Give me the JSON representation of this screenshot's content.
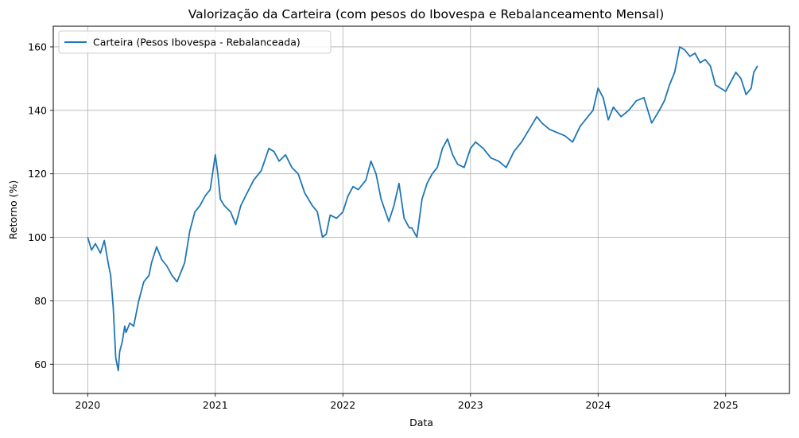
{
  "chart_data": {
    "type": "line",
    "title": "Valorização da Carteira (com pesos do Ibovespa e Rebalanceamento Mensal)",
    "xlabel": "Data",
    "ylabel": "Retorno (%)",
    "x_tick_labels": [
      "2020",
      "2021",
      "2022",
      "2023",
      "2024",
      "2025"
    ],
    "x_tick_values": [
      2020,
      2021,
      2022,
      2023,
      2024,
      2025
    ],
    "y_tick_values": [
      60,
      80,
      100,
      120,
      140,
      160
    ],
    "xlim": [
      2019.73,
      2025.5
    ],
    "ylim": [
      50.8,
      166.5
    ],
    "grid": true,
    "legend_position": "upper-left",
    "line_color": "#1f77b4",
    "series": [
      {
        "name": "Carteira (Pesos Ibovespa - Rebalanceada)",
        "x": [
          2020.0,
          2020.03,
          2020.06,
          2020.1,
          2020.13,
          2020.16,
          2020.18,
          2020.2,
          2020.22,
          2020.24,
          2020.25,
          2020.27,
          2020.29,
          2020.3,
          2020.33,
          2020.36,
          2020.4,
          2020.44,
          2020.48,
          2020.5,
          2020.54,
          2020.58,
          2020.62,
          2020.66,
          2020.7,
          2020.74,
          2020.76,
          2020.8,
          2020.84,
          2020.88,
          2020.92,
          2020.96,
          2021.0,
          2021.02,
          2021.04,
          2021.07,
          2021.12,
          2021.16,
          2021.2,
          2021.25,
          2021.3,
          2021.36,
          2021.42,
          2021.46,
          2021.5,
          2021.55,
          2021.6,
          2021.65,
          2021.7,
          2021.76,
          2021.8,
          2021.84,
          2021.87,
          2021.9,
          2021.95,
          2022.0,
          2022.04,
          2022.08,
          2022.12,
          2022.18,
          2022.22,
          2022.26,
          2022.3,
          2022.36,
          2022.4,
          2022.44,
          2022.48,
          2022.52,
          2022.54,
          2022.58,
          2022.62,
          2022.66,
          2022.7,
          2022.74,
          2022.78,
          2022.82,
          2022.86,
          2022.9,
          2022.95,
          2023.0,
          2023.04,
          2023.1,
          2023.16,
          2023.22,
          2023.28,
          2023.34,
          2023.4,
          2023.46,
          2023.52,
          2023.56,
          2023.62,
          2023.68,
          2023.74,
          2023.8,
          2023.86,
          2023.92,
          2023.96,
          2024.0,
          2024.04,
          2024.08,
          2024.12,
          2024.18,
          2024.24,
          2024.3,
          2024.36,
          2024.42,
          2024.48,
          2024.52,
          2024.56,
          2024.6,
          2024.64,
          2024.68,
          2024.72,
          2024.76,
          2024.8,
          2024.84,
          2024.88,
          2024.92,
          2024.96,
          2025.0,
          2025.04,
          2025.08,
          2025.12,
          2025.16,
          2025.2,
          2025.22,
          2025.25
        ],
        "values": [
          100,
          96,
          98,
          95,
          99,
          92,
          88,
          78,
          62,
          58,
          64,
          67,
          72,
          70,
          73,
          72,
          80,
          86,
          88,
          92,
          97,
          93,
          91,
          88,
          86,
          90,
          92,
          102,
          108,
          110,
          113,
          115,
          126,
          120,
          112,
          110,
          108,
          104,
          110,
          114,
          118,
          121,
          128,
          127,
          124,
          126,
          122,
          120,
          114,
          110,
          108,
          100,
          101,
          107,
          106,
          108,
          113,
          116,
          115,
          118,
          124,
          120,
          112,
          105,
          110,
          117,
          106,
          103,
          103,
          100,
          112,
          117,
          120,
          122,
          128,
          131,
          126,
          123,
          122,
          128,
          130,
          128,
          125,
          124,
          122,
          127,
          130,
          134,
          138,
          136,
          134,
          133,
          132,
          130,
          135,
          138,
          140,
          147,
          144,
          137,
          141,
          138,
          140,
          143,
          144,
          136,
          140,
          143,
          148,
          152,
          160,
          159,
          157,
          158,
          155,
          156,
          154,
          148,
          147,
          146,
          149,
          152,
          150,
          145,
          147,
          152,
          154
        ]
      }
    ]
  }
}
